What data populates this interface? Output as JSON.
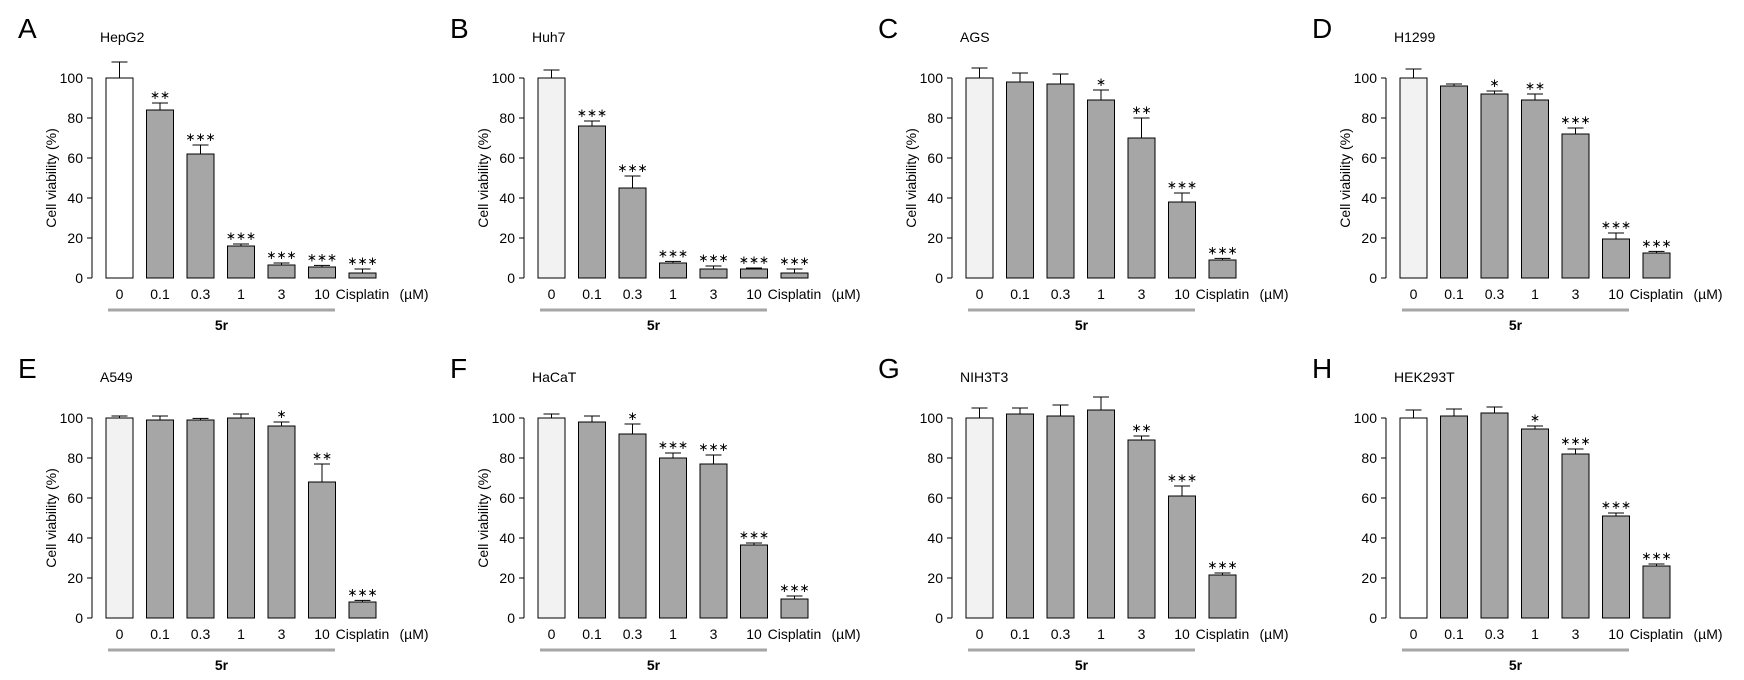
{
  "figure": {
    "shared": {
      "categories": [
        "0",
        "0.1",
        "0.3",
        "1",
        "3",
        "10",
        "Cisplatin"
      ],
      "unit_label": "(µM)",
      "group_label": "5r",
      "ylabel": "Cell viability (%)",
      "yticks": [
        "0",
        "20",
        "40",
        "60",
        "80",
        "100"
      ],
      "ylim": [
        0,
        100
      ]
    }
  },
  "chart_data": [
    {
      "type": "bar",
      "panel": "A",
      "title": "HepG2",
      "ylabel": "Cell viability (%)",
      "ylim": [
        0,
        100
      ],
      "categories": [
        "0",
        "0.1",
        "0.3",
        "1",
        "3",
        "10",
        "Cisplatin"
      ],
      "values": [
        100,
        84,
        62,
        16,
        6.5,
        5.5,
        2.5
      ],
      "errors": [
        8,
        3.5,
        4.5,
        1,
        1,
        0.8,
        2
      ],
      "significance": [
        "",
        "**",
        "***",
        "***",
        "***",
        "***",
        "***"
      ],
      "colors": [
        "#ffffff",
        "#a6a6a6",
        "#a6a6a6",
        "#a6a6a6",
        "#a6a6a6",
        "#a6a6a6",
        "#a6a6a6"
      ]
    },
    {
      "type": "bar",
      "panel": "B",
      "title": "Huh7",
      "ylabel": "Cell viability (%)",
      "ylim": [
        0,
        100
      ],
      "categories": [
        "0",
        "0.1",
        "0.3",
        "1",
        "3",
        "10",
        "Cisplatin"
      ],
      "values": [
        100,
        76,
        45,
        7.5,
        4.5,
        4.5,
        2.5
      ],
      "errors": [
        4,
        2.5,
        6,
        0.8,
        1.5,
        0.5,
        2
      ],
      "significance": [
        "",
        "***",
        "***",
        "***",
        "***",
        "***",
        "***"
      ],
      "colors": [
        "#f2f2f2",
        "#a6a6a6",
        "#a6a6a6",
        "#a6a6a6",
        "#a6a6a6",
        "#a6a6a6",
        "#a6a6a6"
      ]
    },
    {
      "type": "bar",
      "panel": "C",
      "title": "AGS",
      "ylabel": "Cell viability (%)",
      "ylim": [
        0,
        100
      ],
      "categories": [
        "0",
        "0.1",
        "0.3",
        "1",
        "3",
        "10",
        "Cisplatin"
      ],
      "values": [
        100,
        98,
        97,
        89,
        70,
        38,
        9
      ],
      "errors": [
        5,
        4.5,
        5,
        5,
        10,
        4.5,
        0.8
      ],
      "significance": [
        "",
        "",
        "",
        "*",
        "**",
        "***",
        "***"
      ],
      "colors": [
        "#f2f2f2",
        "#a6a6a6",
        "#a6a6a6",
        "#a6a6a6",
        "#a6a6a6",
        "#a6a6a6",
        "#a6a6a6"
      ]
    },
    {
      "type": "bar",
      "panel": "D",
      "title": "H1299",
      "ylabel": "Cell viability (%)",
      "ylim": [
        0,
        100
      ],
      "categories": [
        "0",
        "0.1",
        "0.3",
        "1",
        "3",
        "10",
        "Cisplatin"
      ],
      "values": [
        100,
        96,
        92,
        89,
        72,
        19.5,
        12.5
      ],
      "errors": [
        4.5,
        1,
        1.5,
        3,
        3,
        3,
        0.8
      ],
      "significance": [
        "",
        "",
        "*",
        "**",
        "***",
        "***",
        "***"
      ],
      "colors": [
        "#f2f2f2",
        "#a6a6a6",
        "#a6a6a6",
        "#a6a6a6",
        "#a6a6a6",
        "#a6a6a6",
        "#a6a6a6"
      ]
    },
    {
      "type": "bar",
      "panel": "E",
      "title": "A549",
      "ylabel": "Cell viability (%)",
      "ylim": [
        0,
        100
      ],
      "categories": [
        "0",
        "0.1",
        "0.3",
        "1",
        "3",
        "10",
        "Cisplatin"
      ],
      "values": [
        100,
        99,
        99,
        100,
        96,
        68,
        8
      ],
      "errors": [
        1,
        2,
        0.8,
        2,
        2,
        9,
        0.8
      ],
      "significance": [
        "",
        "",
        "",
        "",
        "*",
        "**",
        "***"
      ],
      "colors": [
        "#f2f2f2",
        "#a6a6a6",
        "#a6a6a6",
        "#a6a6a6",
        "#a6a6a6",
        "#a6a6a6",
        "#a6a6a6"
      ]
    },
    {
      "type": "bar",
      "panel": "F",
      "title": "HaCaT",
      "ylabel": "Cell viability (%)",
      "ylim": [
        0,
        100
      ],
      "categories": [
        "0",
        "0.1",
        "0.3",
        "1",
        "3",
        "10",
        "Cisplatin"
      ],
      "values": [
        100,
        98,
        92,
        80,
        77,
        36.5,
        9.5
      ],
      "errors": [
        2,
        3,
        5,
        2.5,
        4.5,
        1,
        1.5
      ],
      "significance": [
        "",
        "",
        "*",
        "***",
        "***",
        "***",
        "***"
      ],
      "colors": [
        "#f2f2f2",
        "#a6a6a6",
        "#a6a6a6",
        "#a6a6a6",
        "#a6a6a6",
        "#a6a6a6",
        "#a6a6a6"
      ]
    },
    {
      "type": "bar",
      "panel": "G",
      "title": "NIH3T3",
      "ylabel": "",
      "ylim": [
        0,
        100
      ],
      "categories": [
        "0",
        "0.1",
        "0.3",
        "1",
        "3",
        "10",
        "Cisplatin"
      ],
      "values": [
        100,
        102,
        101,
        104,
        89,
        61,
        21.5
      ],
      "errors": [
        5,
        3,
        5.5,
        6.5,
        2,
        5,
        1
      ],
      "significance": [
        "",
        "",
        "",
        "",
        "**",
        "***",
        "***"
      ],
      "colors": [
        "#f2f2f2",
        "#a6a6a6",
        "#a6a6a6",
        "#a6a6a6",
        "#a6a6a6",
        "#a6a6a6",
        "#a6a6a6"
      ]
    },
    {
      "type": "bar",
      "panel": "H",
      "title": "HEK293T",
      "ylabel": "",
      "ylim": [
        0,
        100
      ],
      "categories": [
        "0",
        "0.1",
        "0.3",
        "1",
        "3",
        "10",
        "Cisplatin"
      ],
      "values": [
        100,
        101,
        102.5,
        94.5,
        82,
        51,
        26
      ],
      "errors": [
        4,
        3.5,
        3,
        1.5,
        2.5,
        1.5,
        1
      ],
      "significance": [
        "",
        "",
        "",
        "*",
        "***",
        "***",
        "***"
      ],
      "colors": [
        "#ffffff",
        "#a6a6a6",
        "#a6a6a6",
        "#a6a6a6",
        "#a6a6a6",
        "#a6a6a6",
        "#a6a6a6"
      ]
    }
  ]
}
